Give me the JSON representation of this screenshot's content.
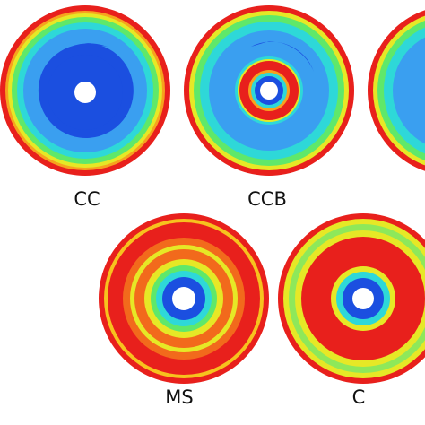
{
  "panels": [
    {
      "label": "CC"
    },
    {
      "label": "CCB"
    },
    {
      "label": "MS"
    },
    {
      "label": "C"
    }
  ]
}
